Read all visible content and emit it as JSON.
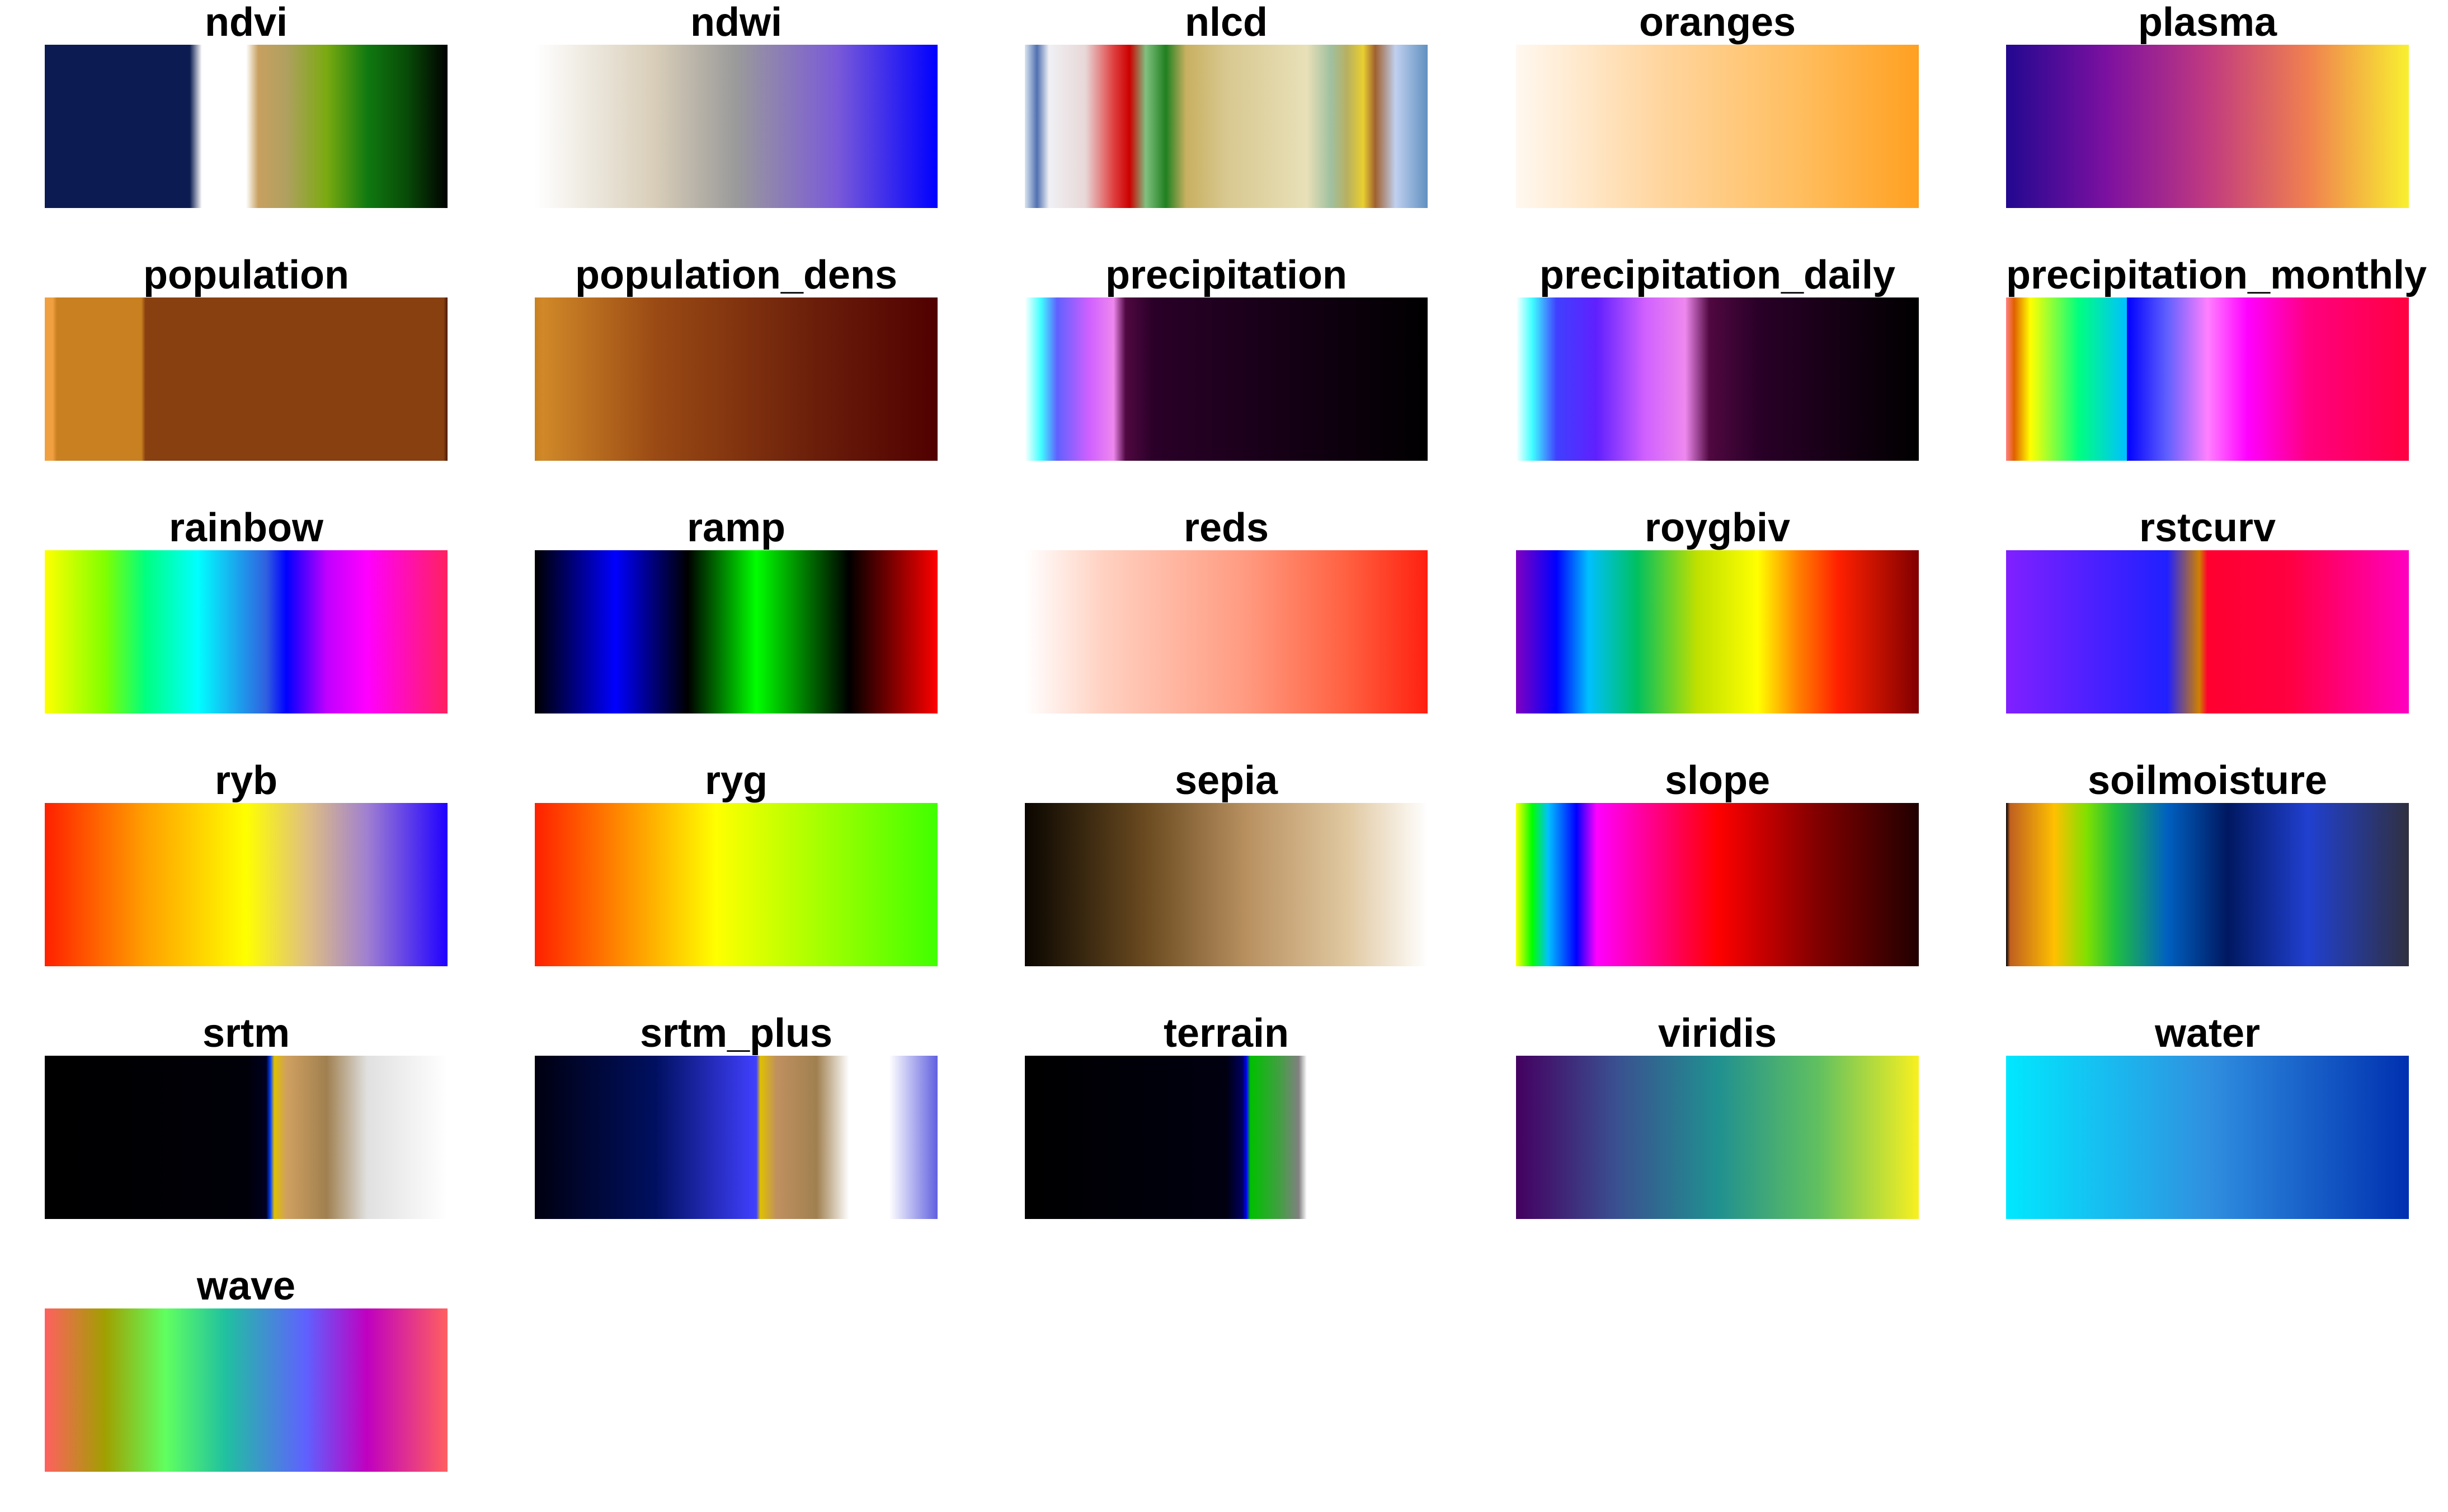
{
  "palettes": [
    {
      "name": "ndvi",
      "colors": [
        [
          0,
          "#0c1c52"
        ],
        [
          0.36,
          "#0c1c52"
        ],
        [
          0.39,
          "#ffffff"
        ],
        [
          0.5,
          "#ffffff"
        ],
        [
          0.53,
          "#c8a060"
        ],
        [
          0.6,
          "#b0a060"
        ],
        [
          0.7,
          "#7aaa10"
        ],
        [
          0.8,
          "#107a10"
        ],
        [
          0.9,
          "#084a08"
        ],
        [
          1,
          "#000000"
        ]
      ]
    },
    {
      "name": "ndwi",
      "colors": [
        [
          0,
          "#ffffff"
        ],
        [
          0.3,
          "#d8cdb8"
        ],
        [
          0.5,
          "#9a9a9a"
        ],
        [
          0.75,
          "#7a5ad8"
        ],
        [
          1,
          "#0000ff"
        ]
      ]
    },
    {
      "name": "nlcd",
      "colors": [
        [
          0,
          "#d8e4f0"
        ],
        [
          0.03,
          "#5070b0"
        ],
        [
          0.06,
          "#f0f0f4"
        ],
        [
          0.15,
          "#e8d8d8"
        ],
        [
          0.22,
          "#e04040"
        ],
        [
          0.26,
          "#cc0000"
        ],
        [
          0.3,
          "#80c080"
        ],
        [
          0.35,
          "#208020"
        ],
        [
          0.4,
          "#c8b060"
        ],
        [
          0.5,
          "#d8c890"
        ],
        [
          0.7,
          "#e8e0b8"
        ],
        [
          0.76,
          "#a0c0a0"
        ],
        [
          0.8,
          "#b8b060"
        ],
        [
          0.84,
          "#e8d030"
        ],
        [
          0.87,
          "#a06030"
        ],
        [
          0.92,
          "#c0d0f0"
        ],
        [
          1,
          "#6090c0"
        ]
      ]
    },
    {
      "name": "oranges",
      "colors": [
        [
          0,
          "#fff8f0"
        ],
        [
          0.35,
          "#ffd6a0"
        ],
        [
          0.7,
          "#ffbe60"
        ],
        [
          1,
          "#ffa020"
        ]
      ]
    },
    {
      "name": "plasma",
      "colors": [
        [
          0,
          "#220890"
        ],
        [
          0.25,
          "#7c10a0"
        ],
        [
          0.5,
          "#c03a80"
        ],
        [
          0.75,
          "#f08050"
        ],
        [
          1,
          "#f8f030"
        ]
      ]
    },
    {
      "name": "population",
      "colors": [
        [
          0,
          "#f0a040"
        ],
        [
          0.02,
          "#f0a040"
        ],
        [
          0.03,
          "#c88020"
        ],
        [
          0.24,
          "#c88020"
        ],
        [
          0.25,
          "#884010"
        ],
        [
          0.99,
          "#884010"
        ],
        [
          1,
          "#4a1a00"
        ]
      ]
    },
    {
      "name": "population_dens",
      "colors": [
        [
          0,
          "#c88020"
        ],
        [
          0.02,
          "#d08828"
        ],
        [
          0.3,
          "#9a4a14"
        ],
        [
          0.7,
          "#6a1e0a"
        ],
        [
          1,
          "#500000"
        ]
      ]
    },
    {
      "name": "precipitation",
      "colors": [
        [
          0,
          "#ffffff"
        ],
        [
          0.04,
          "#40ffff"
        ],
        [
          0.08,
          "#6060ff"
        ],
        [
          0.16,
          "#d060ff"
        ],
        [
          0.22,
          "#ee88ee"
        ],
        [
          0.25,
          "#500840"
        ],
        [
          0.32,
          "#2a0028"
        ],
        [
          0.6,
          "#180018"
        ],
        [
          1,
          "#000000"
        ]
      ]
    },
    {
      "name": "precipitation_daily",
      "colors": [
        [
          0,
          "#ffffff"
        ],
        [
          0.04,
          "#40ffff"
        ],
        [
          0.1,
          "#4040ff"
        ],
        [
          0.2,
          "#6020ff"
        ],
        [
          0.32,
          "#d060ff"
        ],
        [
          0.42,
          "#ee88ee"
        ],
        [
          0.48,
          "#500840"
        ],
        [
          0.6,
          "#2a0028"
        ],
        [
          1,
          "#000000"
        ]
      ]
    },
    {
      "name": "precipitation_monthly",
      "colors": [
        [
          0,
          "#ff8080"
        ],
        [
          0.02,
          "#e06000"
        ],
        [
          0.06,
          "#ffff00"
        ],
        [
          0.18,
          "#00ff80"
        ],
        [
          0.3,
          "#00c0ff"
        ],
        [
          0.3,
          "#0000ff"
        ],
        [
          0.4,
          "#6060ff"
        ],
        [
          0.5,
          "#ff80ff"
        ],
        [
          0.6,
          "#ff00ff"
        ],
        [
          0.75,
          "#ff0080"
        ],
        [
          1,
          "#ff0040"
        ]
      ]
    },
    {
      "name": "rainbow",
      "colors": [
        [
          0,
          "#ffff00"
        ],
        [
          0.15,
          "#80ff00"
        ],
        [
          0.25,
          "#00ff80"
        ],
        [
          0.38,
          "#00ffff"
        ],
        [
          0.55,
          "#3060e0"
        ],
        [
          0.6,
          "#0000ff"
        ],
        [
          0.7,
          "#c000ff"
        ],
        [
          0.8,
          "#ff00ff"
        ],
        [
          1,
          "#ff2060"
        ]
      ]
    },
    {
      "name": "ramp",
      "colors": [
        [
          0,
          "#000000"
        ],
        [
          0.2,
          "#0000ff"
        ],
        [
          0.38,
          "#000000"
        ],
        [
          0.55,
          "#00ff00"
        ],
        [
          0.78,
          "#000000"
        ],
        [
          1,
          "#ff0000"
        ]
      ]
    },
    {
      "name": "reds",
      "colors": [
        [
          0,
          "#ffffff"
        ],
        [
          0.2,
          "#ffd0c0"
        ],
        [
          0.55,
          "#ff9a80"
        ],
        [
          0.8,
          "#ff6040"
        ],
        [
          1,
          "#ff2010"
        ]
      ]
    },
    {
      "name": "roygbiv",
      "colors": [
        [
          0,
          "#8000c0"
        ],
        [
          0.1,
          "#0000ff"
        ],
        [
          0.18,
          "#00c0ff"
        ],
        [
          0.3,
          "#00c060"
        ],
        [
          0.45,
          "#c0e000"
        ],
        [
          0.6,
          "#ffff00"
        ],
        [
          0.7,
          "#ff8000"
        ],
        [
          0.8,
          "#ff2000"
        ],
        [
          1,
          "#800000"
        ]
      ]
    },
    {
      "name": "rstcurv",
      "colors": [
        [
          0,
          "#8020ff"
        ],
        [
          0.4,
          "#2020ff"
        ],
        [
          0.48,
          "#d08000"
        ],
        [
          0.5,
          "#ff0030"
        ],
        [
          0.7,
          "#ff0040"
        ],
        [
          1,
          "#ff00c0"
        ]
      ]
    },
    {
      "name": "ryb",
      "colors": [
        [
          0,
          "#ff2000"
        ],
        [
          0.25,
          "#ffa000"
        ],
        [
          0.5,
          "#ffff00"
        ],
        [
          0.65,
          "#e0c080"
        ],
        [
          0.8,
          "#a080d0"
        ],
        [
          1,
          "#2000ff"
        ]
      ]
    },
    {
      "name": "ryg",
      "colors": [
        [
          0,
          "#ff2000"
        ],
        [
          0.45,
          "#ffff00"
        ],
        [
          1,
          "#40ff00"
        ]
      ]
    },
    {
      "name": "sepia",
      "colors": [
        [
          0,
          "#0a0600"
        ],
        [
          0.3,
          "#6a4a20"
        ],
        [
          0.55,
          "#b89060"
        ],
        [
          0.8,
          "#e0c8a0"
        ],
        [
          1,
          "#ffffff"
        ]
      ]
    },
    {
      "name": "slope",
      "colors": [
        [
          0,
          "#ffff00"
        ],
        [
          0.04,
          "#00ff00"
        ],
        [
          0.08,
          "#00c0ff"
        ],
        [
          0.15,
          "#0000ff"
        ],
        [
          0.2,
          "#ff00ff"
        ],
        [
          0.5,
          "#ff0000"
        ],
        [
          0.75,
          "#800000"
        ],
        [
          1,
          "#200000"
        ]
      ]
    },
    {
      "name": "soilmoisture",
      "colors": [
        [
          0,
          "#000000"
        ],
        [
          0.01,
          "#c06020"
        ],
        [
          0.12,
          "#ffc000"
        ],
        [
          0.2,
          "#80e000"
        ],
        [
          0.27,
          "#20c040"
        ],
        [
          0.4,
          "#0060c0"
        ],
        [
          0.55,
          "#001860"
        ],
        [
          0.75,
          "#2040d0"
        ],
        [
          1,
          "#303040"
        ]
      ]
    },
    {
      "name": "srtm",
      "colors": [
        [
          0,
          "#000000"
        ],
        [
          0.5,
          "#000008"
        ],
        [
          0.55,
          "#000020"
        ],
        [
          0.56,
          "#0040ff"
        ],
        [
          0.57,
          "#e0c000"
        ],
        [
          0.6,
          "#d0a060"
        ],
        [
          0.7,
          "#a08050"
        ],
        [
          0.8,
          "#e0e0e0"
        ],
        [
          1,
          "#ffffff"
        ]
      ]
    },
    {
      "name": "srtm_plus",
      "colors": [
        [
          0,
          "#000010"
        ],
        [
          0.3,
          "#001060"
        ],
        [
          0.55,
          "#4040ff"
        ],
        [
          0.56,
          "#e0c000"
        ],
        [
          0.6,
          "#c09060"
        ],
        [
          0.7,
          "#a08050"
        ],
        [
          0.78,
          "#ffffff"
        ],
        [
          0.88,
          "#ffffff"
        ],
        [
          1,
          "#6060e0"
        ]
      ]
    },
    {
      "name": "terrain",
      "colors": [
        [
          0,
          "#000000"
        ],
        [
          0.5,
          "#000010"
        ],
        [
          0.54,
          "#000060"
        ],
        [
          0.55,
          "#0000ff"
        ],
        [
          0.56,
          "#00c000"
        ],
        [
          0.63,
          "#40a040"
        ],
        [
          0.68,
          "#808080"
        ],
        [
          0.7,
          "#ffffff"
        ],
        [
          1,
          "#ffffff"
        ]
      ]
    },
    {
      "name": "viridis",
      "colors": [
        [
          0,
          "#440060"
        ],
        [
          0.25,
          "#3a5090"
        ],
        [
          0.5,
          "#209090"
        ],
        [
          0.75,
          "#60c060"
        ],
        [
          1,
          "#f8f020"
        ]
      ]
    },
    {
      "name": "water",
      "colors": [
        [
          0,
          "#00e8ff"
        ],
        [
          0.5,
          "#3090e0"
        ],
        [
          1,
          "#0030b0"
        ]
      ]
    },
    {
      "name": "wave",
      "colors": [
        [
          0,
          "#ff6060"
        ],
        [
          0.15,
          "#a0a000"
        ],
        [
          0.3,
          "#60ff60"
        ],
        [
          0.45,
          "#20c0a0"
        ],
        [
          0.65,
          "#6060ff"
        ],
        [
          0.8,
          "#c000c0"
        ],
        [
          1,
          "#ff6060"
        ]
      ]
    }
  ]
}
